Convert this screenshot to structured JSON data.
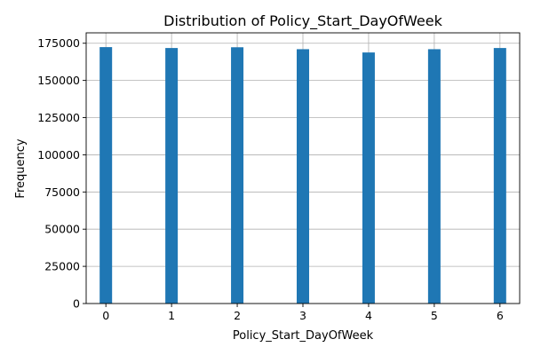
{
  "chart_data": {
    "type": "bar",
    "title": "Distribution of Policy_Start_DayOfWeek",
    "xlabel": "Policy_Start_DayOfWeek",
    "ylabel": "Frequency",
    "categories": [
      "0",
      "1",
      "2",
      "3",
      "4",
      "5",
      "6"
    ],
    "x": [
      0,
      1,
      2,
      3,
      4,
      5,
      6
    ],
    "values": [
      172400,
      171800,
      172300,
      171000,
      168800,
      171000,
      171800
    ],
    "xlim": [
      -0.3,
      6.3
    ],
    "ylim": [
      0,
      182000
    ],
    "xticks": [
      0,
      1,
      2,
      3,
      4,
      5,
      6
    ],
    "yticks": [
      0,
      25000,
      50000,
      75000,
      100000,
      125000,
      150000,
      175000
    ],
    "grid": true,
    "bar_color": "#1f77b4"
  }
}
